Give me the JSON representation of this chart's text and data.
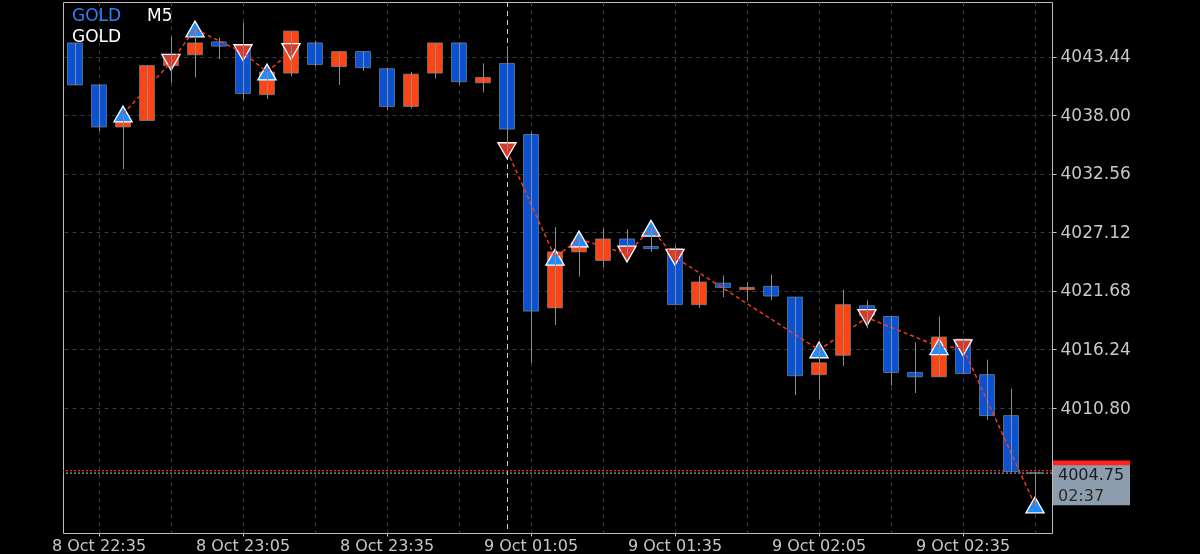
{
  "chart_data": {
    "type": "candlestick",
    "title": "GOLD",
    "subtitle": "GOLD",
    "annotations": [
      "M5",
      "02:37"
    ],
    "categories": [
      null,
      "8 Oct 22:35",
      null,
      null,
      null,
      null,
      null,
      "8 Oct 23:05",
      null,
      null,
      null,
      null,
      null,
      "8 Oct 23:35",
      null,
      null,
      null,
      null,
      null,
      "9 Oct 01:05",
      null,
      null,
      null,
      null,
      null,
      "9 Oct 01:35",
      null,
      null,
      null,
      null,
      null,
      "9 Oct 02:05",
      null,
      null,
      null,
      null,
      null,
      "9 Oct 02:35",
      null,
      null,
      null
    ],
    "ohlc": [
      [
        4044.7,
        4044.7,
        4040.8,
        4040.8
      ],
      [
        4040.8,
        4040.8,
        4036.5,
        4036.9
      ],
      [
        4036.9,
        4038.1,
        4033.0,
        4037.5
      ],
      [
        4037.5,
        4042.6,
        4037.5,
        4042.6
      ],
      [
        4042.6,
        4045.3,
        4041.0,
        4043.6
      ],
      [
        4043.6,
        4046.0,
        4041.5,
        4044.7
      ],
      [
        4044.8,
        4045.2,
        4043.2,
        4044.4
      ],
      [
        4044.4,
        4046.6,
        4039.4,
        4040.0
      ],
      [
        4039.9,
        4042.0,
        4039.5,
        4042.0
      ],
      [
        4041.9,
        4045.8,
        4041.6,
        4045.8
      ],
      [
        4044.7,
        4044.9,
        4042.5,
        4042.7
      ],
      [
        4042.5,
        4043.9,
        4040.8,
        4043.9
      ],
      [
        4043.9,
        4043.9,
        4042.1,
        4042.4
      ],
      [
        4042.3,
        4042.4,
        4038.5,
        4038.8
      ],
      [
        4038.8,
        4042.0,
        4038.6,
        4041.8
      ],
      [
        4041.9,
        4044.7,
        4041.4,
        4044.7
      ],
      [
        4044.7,
        4044.7,
        4040.8,
        4041.1
      ],
      [
        4041.0,
        4042.8,
        4040.1,
        4041.5
      ],
      [
        4042.8,
        4044.4,
        4034.7,
        4036.7
      ],
      [
        4036.2,
        4036.4,
        4015.0,
        4019.8
      ],
      [
        4020.1,
        4027.6,
        4018.5,
        4025.3
      ],
      [
        4025.3,
        4026.9,
        4023.0,
        4026.2
      ],
      [
        4024.5,
        4027.5,
        4023.9,
        4026.5
      ],
      [
        4026.5,
        4027.4,
        4025.1,
        4025.8
      ],
      [
        4025.8,
        4027.5,
        4025.3,
        4025.6
      ],
      [
        4025.6,
        4025.9,
        4020.4,
        4020.4
      ],
      [
        4020.4,
        4023.1,
        4020.1,
        4022.5
      ],
      [
        4022.4,
        4023.1,
        4021.1,
        4022.0
      ],
      [
        4021.8,
        4022.5,
        4020.8,
        4022.0
      ],
      [
        4022.1,
        4023.2,
        4020.8,
        4021.2
      ],
      [
        4021.1,
        4021.1,
        4012.0,
        4013.8
      ],
      [
        4013.9,
        4016.8,
        4011.6,
        4015.0
      ],
      [
        4015.7,
        4021.8,
        4014.7,
        4020.4
      ],
      [
        4020.3,
        4020.8,
        4018.2,
        4019.4
      ],
      [
        4019.3,
        4019.3,
        4012.9,
        4014.1
      ],
      [
        4014.1,
        4016.9,
        4012.2,
        4013.7
      ],
      [
        4013.7,
        4019.3,
        4013.7,
        4017.4
      ],
      [
        4017.2,
        4017.2,
        4014.0,
        4014.0
      ],
      [
        4013.9,
        4015.3,
        4009.7,
        4010.1
      ],
      [
        4010.1,
        4012.6,
        4004.9,
        4004.9
      ],
      [
        4004.8,
        4004.9,
        4001.8,
        4004.75
      ]
    ],
    "colors": [
      "#0a52d4",
      "#0a52d4",
      "#ff4414",
      "#ff4414",
      "#ff4414",
      "#ff4414",
      "#0a52d4",
      "#0a52d4",
      "#ff4414",
      "#ff4414",
      "#0a52d4",
      "#ff4414",
      "#0a52d4",
      "#0a52d4",
      "#ff4414",
      "#ff4414",
      "#0a52d4",
      "#ff4414",
      "#0a52d4",
      "#0a52d4",
      "#ff4414",
      "#ff4414",
      "#ff4414",
      "#0a52d4",
      "#0a52d4",
      "#0a52d4",
      "#ff4414",
      "#0a52d4",
      "#ff4414",
      "#0a52d4",
      "#0a52d4",
      "#ff4414",
      "#ff4414",
      "#0a52d4",
      "#0a52d4",
      "#0a52d4",
      "#ff4414",
      "#0a52d4",
      "#0a52d4",
      "#0a52d4",
      "#0a52d4"
    ],
    "series": [
      {
        "type": "line",
        "color": "#ff3b1f",
        "line_style": "dashed",
        "values": [
          null,
          null,
          4038.1,
          null,
          4042.9,
          4046.0,
          null,
          4043.8,
          4042.0,
          4043.9,
          null,
          null,
          null,
          null,
          null,
          null,
          null,
          null,
          null,
          null,
          null,
          null,
          null,
          null,
          null,
          null,
          null,
          null,
          null,
          null,
          null,
          null,
          null,
          null,
          null,
          null,
          null,
          null,
          null,
          null,
          null
        ]
      },
      {
        "type": "line",
        "color": "#ff3b1f",
        "line_style": "dashed",
        "values": [
          null,
          null,
          null,
          null,
          null,
          null,
          null,
          null,
          null,
          null,
          null,
          null,
          null,
          null,
          null,
          null,
          null,
          null,
          4034.7,
          null,
          4024.8,
          4026.5,
          null,
          4025.1,
          4027.5,
          4024.8,
          null,
          null,
          null,
          null,
          null,
          4016.2,
          null,
          4019.2,
          null,
          null,
          4016.5,
          4016.4,
          null,
          null,
          4001.8
        ]
      },
      {
        "type": "scatter",
        "color": "#1e8cff",
        "marker": "triangle",
        "values": [
          null,
          null,
          4038.1,
          null,
          null,
          4046.0,
          null,
          null,
          4042.0,
          null,
          null,
          null,
          null,
          null,
          null,
          null,
          null,
          null,
          null,
          null,
          4024.8,
          4026.5,
          null,
          null,
          4027.5,
          null,
          null,
          null,
          null,
          null,
          null,
          4016.2,
          null,
          null,
          null,
          null,
          4016.5,
          null,
          null,
          null,
          4001.8
        ]
      },
      {
        "type": "scatter",
        "color": "#d63a2a",
        "marker": "triangle",
        "values": [
          null,
          null,
          null,
          null,
          4042.9,
          null,
          null,
          4043.8,
          null,
          4043.9,
          null,
          null,
          null,
          null,
          null,
          null,
          null,
          null,
          4034.7,
          null,
          null,
          null,
          null,
          4025.1,
          null,
          4024.8,
          null,
          null,
          null,
          null,
          null,
          null,
          null,
          4019.2,
          null,
          null,
          null,
          4016.4,
          null,
          null,
          null
        ]
      }
    ],
    "ylim": [
      3999.2,
      4048.5
    ],
    "yticks": [
      4043.44,
      {
        "value": 4038,
        "label": "4038.00"
      },
      4032.56,
      4027.12,
      4021.68,
      4016.24,
      {
        "value": 4010.8,
        "label": "4010.80"
      }
    ],
    "grid": true,
    "ref_lines": [
      {
        "axis": "y",
        "value": 4005.0,
        "color": "#ff2020",
        "line_style": "dotted"
      },
      {
        "axis": "y",
        "value": 4004.75,
        "label": "4004.75",
        "color": "#8c9eae",
        "line_style": "dotted"
      }
    ]
  }
}
